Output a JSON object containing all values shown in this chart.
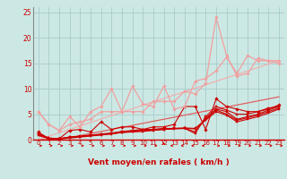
{
  "title": "",
  "xlabel": "Vent moyen/en rafales ( km/h )",
  "ylabel": "",
  "xlim": [
    -0.5,
    23.5
  ],
  "ylim": [
    0,
    26
  ],
  "xticks": [
    0,
    1,
    2,
    3,
    4,
    5,
    6,
    7,
    8,
    9,
    10,
    11,
    12,
    13,
    14,
    15,
    16,
    17,
    18,
    19,
    20,
    21,
    22,
    23
  ],
  "yticks": [
    0,
    5,
    10,
    15,
    20,
    25
  ],
  "bg_color": "#cce8e4",
  "grid_color": "#a8ccca",
  "series": [
    {
      "x": [
        0,
        1,
        2,
        3,
        4,
        5,
        6,
        7,
        8,
        9,
        10,
        11,
        12,
        13,
        14,
        15,
        16,
        17,
        18,
        19,
        20,
        21,
        22,
        23
      ],
      "y": [
        1.2,
        0.3,
        0.2,
        0.5,
        0.6,
        0.8,
        1.0,
        1.2,
        1.4,
        1.5,
        1.6,
        1.8,
        2.0,
        2.2,
        2.2,
        1.2,
        4.5,
        6.5,
        5.8,
        5.0,
        5.0,
        5.5,
        6.2,
        6.5
      ],
      "color": "#cc0000",
      "lw": 0.8,
      "marker": "s",
      "ms": 1.5
    },
    {
      "x": [
        0,
        1,
        2,
        3,
        4,
        5,
        6,
        7,
        8,
        9,
        10,
        11,
        12,
        13,
        14,
        15,
        16,
        17,
        18,
        19,
        20,
        21,
        22,
        23
      ],
      "y": [
        1.2,
        0.3,
        0.2,
        0.5,
        0.7,
        0.9,
        1.1,
        1.3,
        1.6,
        1.8,
        2.0,
        2.0,
        2.2,
        2.2,
        2.2,
        1.5,
        4.2,
        6.0,
        5.5,
        4.0,
        4.5,
        5.0,
        5.8,
        6.5
      ],
      "color": "#cc0000",
      "lw": 0.8,
      "marker": "s",
      "ms": 1.5
    },
    {
      "x": [
        0,
        1,
        2,
        3,
        4,
        5,
        6,
        7,
        8,
        9,
        10,
        11,
        12,
        13,
        14,
        15,
        16,
        17,
        18,
        19,
        20,
        21,
        22,
        23
      ],
      "y": [
        1.0,
        0.2,
        0.2,
        0.4,
        0.6,
        0.8,
        1.0,
        1.2,
        1.5,
        1.7,
        1.9,
        2.0,
        2.1,
        2.2,
        2.3,
        2.2,
        4.0,
        5.8,
        5.0,
        3.8,
        4.3,
        4.8,
        5.5,
        6.2
      ],
      "color": "#cc0000",
      "lw": 0.8,
      "marker": "s",
      "ms": 1.5
    },
    {
      "x": [
        0,
        1,
        2,
        3,
        4,
        5,
        6,
        7,
        8,
        9,
        10,
        11,
        12,
        13,
        14,
        15,
        16,
        17,
        18,
        19,
        20,
        21,
        22,
        23
      ],
      "y": [
        0.8,
        0.2,
        0.2,
        0.3,
        0.5,
        0.7,
        0.9,
        1.1,
        1.4,
        1.6,
        1.8,
        1.9,
        2.0,
        2.1,
        2.2,
        2.1,
        3.8,
        5.5,
        4.8,
        3.5,
        4.0,
        4.5,
        5.2,
        6.0
      ],
      "color": "#cc0000",
      "lw": 0.8,
      "marker": "s",
      "ms": 1.5
    },
    {
      "x": [
        0,
        1,
        2,
        3,
        4,
        5,
        6,
        7,
        8,
        9,
        10,
        11,
        12,
        13,
        14,
        15,
        16,
        17,
        18,
        19,
        20,
        21,
        22,
        23
      ],
      "y": [
        1.5,
        0.2,
        0.2,
        1.8,
        2.0,
        1.5,
        3.5,
        2.0,
        2.5,
        2.5,
        2.0,
        2.5,
        2.5,
        3.0,
        6.5,
        6.5,
        2.0,
        8.0,
        6.5,
        6.0,
        5.5,
        5.5,
        6.0,
        6.8
      ],
      "color": "#cc0000",
      "lw": 0.8,
      "marker": "D",
      "ms": 1.8
    },
    {
      "x": [
        0,
        1,
        2,
        3,
        4,
        5,
        6,
        7,
        8,
        9,
        10,
        11,
        12,
        13,
        14,
        15,
        16,
        17,
        18,
        19,
        20,
        21,
        22,
        23
      ],
      "y": [
        5.5,
        3.0,
        1.8,
        4.5,
        2.5,
        5.5,
        6.5,
        10.0,
        5.5,
        10.5,
        7.0,
        6.5,
        10.5,
        6.0,
        6.5,
        11.5,
        12.0,
        13.5,
        16.2,
        13.0,
        16.5,
        15.5,
        15.5,
        15.5
      ],
      "color": "#f0a0a0",
      "lw": 0.9,
      "marker": "D",
      "ms": 1.8
    },
    {
      "x": [
        0,
        1,
        2,
        3,
        4,
        5,
        6,
        7,
        8,
        9,
        10,
        11,
        12,
        13,
        14,
        15,
        16,
        17,
        18,
        19,
        20,
        21,
        22,
        23
      ],
      "y": [
        5.5,
        3.0,
        1.8,
        3.0,
        3.5,
        4.0,
        5.5,
        5.5,
        5.5,
        5.5,
        5.5,
        7.5,
        7.5,
        7.5,
        9.5,
        9.0,
        11.0,
        24.0,
        16.5,
        12.5,
        13.0,
        16.0,
        15.5,
        15.0
      ],
      "color": "#f0a0a0",
      "lw": 0.9,
      "marker": "D",
      "ms": 1.8
    },
    {
      "x": [
        0,
        1,
        2,
        3,
        4,
        5,
        6,
        7,
        8,
        9,
        10,
        11,
        12,
        13,
        14,
        15,
        16,
        17,
        18,
        19,
        20,
        21,
        22,
        23
      ],
      "y": [
        0,
        0,
        0,
        0.4,
        0.8,
        1.2,
        1.6,
        2.0,
        2.4,
        2.8,
        3.2,
        3.6,
        4.0,
        4.4,
        4.8,
        5.2,
        5.6,
        6.0,
        6.4,
        6.8,
        7.2,
        7.6,
        8.0,
        8.4
      ],
      "color": "#e06060",
      "lw": 0.9,
      "marker": null,
      "ms": 0
    },
    {
      "x": [
        0,
        23
      ],
      "y": [
        0,
        15.5
      ],
      "color": "#f0b0b0",
      "lw": 0.9,
      "marker": null,
      "ms": 0
    }
  ],
  "arrow_color": "#cc0000",
  "xlabel_color": "#cc0000",
  "tick_color": "#cc0000"
}
